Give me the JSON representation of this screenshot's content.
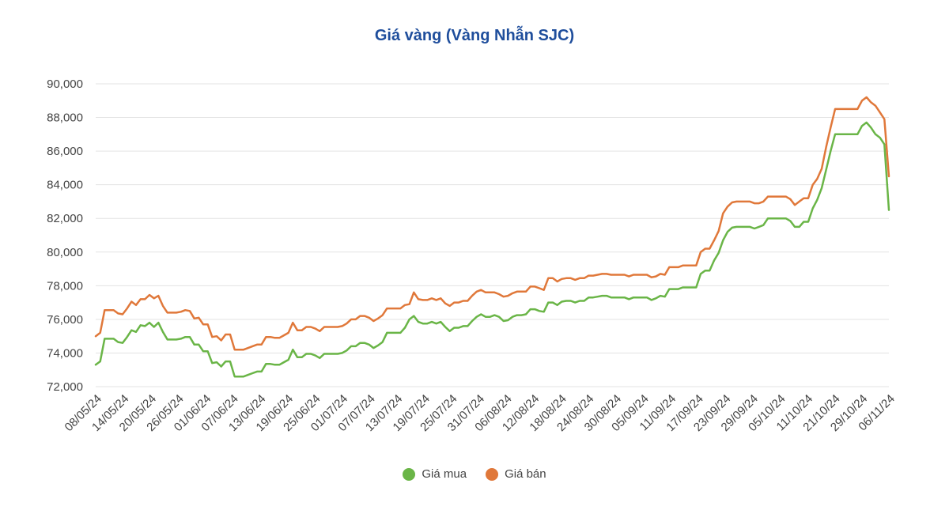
{
  "colors": {
    "title": "#1f4e9c",
    "buy": "#6ab547",
    "sell": "#e0783a",
    "grid": "#e3e3e3"
  },
  "chart_data": {
    "type": "line",
    "title": "Giá vàng (Vàng Nhẫn SJC)",
    "xlabel": "",
    "ylabel": "",
    "ylim": [
      72000,
      90000
    ],
    "yticks": [
      "72,000",
      "74,000",
      "76,000",
      "78,000",
      "80,000",
      "82,000",
      "84,000",
      "86,000",
      "88,000",
      "90,000"
    ],
    "ytick_values": [
      72000,
      74000,
      76000,
      78000,
      80000,
      82000,
      84000,
      86000,
      88000,
      90000
    ],
    "xticks": [
      "08/05/24",
      "14/05/24",
      "20/05/24",
      "26/05/24",
      "01/06/24",
      "07/06/24",
      "13/06/24",
      "19/06/24",
      "25/06/24",
      "01/07/24",
      "07/07/24",
      "13/07/24",
      "19/07/24",
      "25/07/24",
      "31/07/24",
      "06/08/24",
      "12/08/24",
      "18/08/24",
      "24/08/24",
      "30/08/24",
      "05/09/24",
      "11/09/24",
      "17/09/24",
      "23/09/24",
      "29/09/24",
      "05/10/24",
      "11/10/24",
      "21/10/24",
      "29/10/24",
      "06/11/24"
    ],
    "grid": true,
    "legend_position": "bottom",
    "series": [
      {
        "name": "Giá mua",
        "color": "#6ab547",
        "values": [
          73300,
          73500,
          74850,
          74850,
          74850,
          74650,
          74600,
          74950,
          75350,
          75250,
          75650,
          75600,
          75800,
          75550,
          75800,
          75250,
          74800,
          74800,
          74800,
          74850,
          74950,
          74950,
          74500,
          74500,
          74100,
          74100,
          73400,
          73450,
          73200,
          73500,
          73500,
          72600,
          72600,
          72600,
          72700,
          72800,
          72900,
          72900,
          73350,
          73350,
          73300,
          73300,
          73450,
          73600,
          74200,
          73750,
          73750,
          73950,
          73950,
          73850,
          73700,
          73950,
          73950,
          73950,
          73950,
          74000,
          74150,
          74400,
          74400,
          74600,
          74600,
          74500,
          74300,
          74450,
          74650,
          75200,
          75200,
          75200,
          75200,
          75500,
          76000,
          76200,
          75850,
          75750,
          75750,
          75850,
          75750,
          75850,
          75550,
          75300,
          75500,
          75500,
          75600,
          75600,
          75900,
          76150,
          76300,
          76150,
          76150,
          76250,
          76150,
          75900,
          75950,
          76150,
          76250,
          76250,
          76300,
          76600,
          76600,
          76500,
          76450,
          77000,
          77000,
          76850,
          77050,
          77100,
          77100,
          77000,
          77100,
          77100,
          77300,
          77300,
          77350,
          77400,
          77400,
          77300,
          77300,
          77300,
          77300,
          77200,
          77300,
          77300,
          77300,
          77300,
          77150,
          77250,
          77400,
          77350,
          77800,
          77800,
          77800,
          77900,
          77900,
          77900,
          77900,
          78700,
          78900,
          78900,
          79500,
          79950,
          80700,
          81200,
          81450,
          81500,
          81500,
          81500,
          81500,
          81400,
          81500,
          81600,
          82000,
          82000,
          82000,
          82000,
          82000,
          81850,
          81500,
          81500,
          81800,
          81800,
          82600,
          83100,
          83800,
          84900,
          86000,
          87000,
          87000,
          87000,
          87000,
          87000,
          87000,
          87500,
          87700,
          87400,
          87000,
          86800,
          86400,
          82500
        ]
      },
      {
        "name": "Giá bán",
        "color": "#e0783a",
        "values": [
          75000,
          75200,
          76550,
          76550,
          76550,
          76350,
          76300,
          76650,
          77050,
          76850,
          77200,
          77200,
          77450,
          77250,
          77400,
          76800,
          76400,
          76400,
          76400,
          76450,
          76550,
          76500,
          76050,
          76100,
          75700,
          75700,
          74950,
          75000,
          74750,
          75100,
          75100,
          74200,
          74200,
          74200,
          74300,
          74400,
          74500,
          74500,
          74950,
          74950,
          74900,
          74900,
          75050,
          75200,
          75800,
          75350,
          75350,
          75550,
          75550,
          75450,
          75300,
          75550,
          75550,
          75550,
          75550,
          75600,
          75750,
          76000,
          76000,
          76200,
          76200,
          76100,
          75900,
          76050,
          76250,
          76650,
          76650,
          76650,
          76650,
          76850,
          76900,
          77600,
          77200,
          77150,
          77150,
          77250,
          77150,
          77250,
          76950,
          76800,
          77000,
          77000,
          77100,
          77100,
          77400,
          77650,
          77750,
          77600,
          77600,
          77600,
          77500,
          77350,
          77400,
          77550,
          77650,
          77650,
          77650,
          77950,
          77950,
          77850,
          77750,
          78450,
          78450,
          78250,
          78400,
          78450,
          78450,
          78350,
          78450,
          78450,
          78600,
          78600,
          78650,
          78700,
          78700,
          78650,
          78650,
          78650,
          78650,
          78550,
          78650,
          78650,
          78650,
          78650,
          78500,
          78550,
          78700,
          78650,
          79100,
          79100,
          79100,
          79200,
          79200,
          79200,
          79200,
          80000,
          80200,
          80200,
          80700,
          81250,
          82300,
          82700,
          82950,
          83000,
          83000,
          83000,
          83000,
          82900,
          82900,
          83000,
          83300,
          83300,
          83300,
          83300,
          83300,
          83150,
          82800,
          83000,
          83200,
          83200,
          84000,
          84350,
          84950,
          86250,
          87400,
          88500,
          88500,
          88500,
          88500,
          88500,
          88500,
          89000,
          89200,
          88900,
          88700,
          88300,
          87900,
          84500
        ]
      }
    ]
  }
}
